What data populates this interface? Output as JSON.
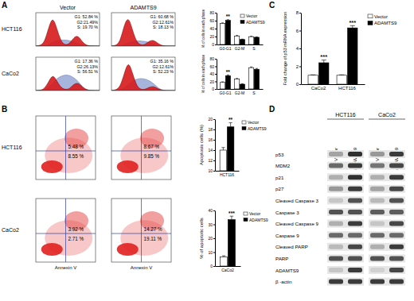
{
  "panel_letters": [
    "A",
    "B",
    "C",
    "D"
  ],
  "panel_a": {
    "columns": [
      "Vector",
      "ADAMTS9"
    ],
    "x": [
      0,
      1,
      2,
      3,
      4,
      5,
      6,
      7,
      8,
      9,
      10,
      11,
      12,
      13,
      14,
      15
    ],
    "xlim": [
      0,
      15
    ],
    "ylim": [
      0,
      110
    ],
    "tick_labels": false,
    "rows": [
      {
        "label": "HCT116",
        "histograms": [
          {
            "stats": [
              "G1: 52.84 %",
              "G2:21.49%",
              "S: 19.70 %"
            ],
            "g1_g2": [
              0,
              2,
              10,
              60,
              100,
              55,
              12,
              3,
              8,
              30,
              35,
              12,
              2,
              0,
              0,
              0
            ],
            "s_phase": [
              0,
              0,
              0,
              5,
              12,
              18,
              20,
              20,
              18,
              14,
              8,
              3,
              0,
              0,
              0,
              0
            ]
          },
          {
            "stats": [
              "G1: 60.68 %",
              "G2:12.61%",
              "S: 18.13 %"
            ],
            "g1_g2": [
              0,
              2,
              12,
              70,
              100,
              50,
              10,
              3,
              5,
              18,
              20,
              8,
              1,
              0,
              0,
              0
            ],
            "s_phase": [
              0,
              0,
              0,
              5,
              10,
              15,
              17,
              17,
              15,
              12,
              7,
              2,
              0,
              0,
              0,
              0
            ]
          }
        ]
      },
      {
        "label": "CaCo2",
        "histograms": [
          {
            "stats": [
              "G1: 17.36 %",
              "G2:26.13%",
              "S: 56.51 %"
            ],
            "g1_g2": [
              0,
              1,
              5,
              28,
              55,
              30,
              8,
              3,
              6,
              22,
              26,
              10,
              2,
              0,
              0,
              0
            ],
            "s_phase": [
              0,
              0,
              2,
              10,
              25,
              40,
              48,
              52,
              50,
              42,
              30,
              12,
              2,
              0,
              0,
              0
            ]
          },
          {
            "stats": [
              "G1: 35.16 %",
              "G2:12.61%",
              "S: 52.23 %"
            ],
            "g1_g2": [
              0,
              2,
              10,
              55,
              100,
              55,
              12,
              3,
              4,
              12,
              14,
              5,
              1,
              0,
              0,
              0
            ],
            "s_phase": [
              0,
              0,
              2,
              8,
              20,
              32,
              38,
              40,
              38,
              32,
              22,
              8,
              1,
              0,
              0,
              0
            ]
          }
        ]
      }
    ]
  },
  "panel_b": {
    "x_label": "Annexin V",
    "tick_labels": false,
    "rows": [
      {
        "label": "HCT116",
        "plots": [
          {
            "upper_right": "5.48 %",
            "lower_right": "8.55 %"
          },
          {
            "upper_right": "8.67 %",
            "lower_right": "9.85 %"
          }
        ]
      },
      {
        "label": "CaCo2",
        "plots": [
          {
            "upper_right": "3.92 %",
            "lower_right": "2.71 %"
          },
          {
            "upper_right": "14.27 %",
            "lower_right": "19.11 %"
          }
        ]
      }
    ]
  },
  "panel_d": {
    "cell_lines": [
      "HCT116",
      "CaCo2"
    ],
    "lanes": [
      "Vector",
      "ADAMTS9"
    ],
    "intensity_range": [
      0,
      1
    ],
    "rows": [
      {
        "label": "p53",
        "intensity": [
          0.35,
          0.85,
          0.4,
          0.8
        ]
      },
      {
        "label": "MDM2",
        "intensity": [
          0.6,
          0.8,
          0.55,
          0.75
        ]
      },
      {
        "label": "p21",
        "intensity": [
          0.3,
          0.85,
          0.3,
          0.8
        ]
      },
      {
        "label": "p27",
        "intensity": [
          0.4,
          0.8,
          0.35,
          0.75
        ]
      },
      {
        "label": "Cleaved Caspase 3",
        "intensity": [
          0.2,
          0.7,
          0.25,
          0.7
        ]
      },
      {
        "label": "Caspase 3",
        "intensity": [
          0.7,
          0.7,
          0.65,
          0.65
        ]
      },
      {
        "label": "Cleaved Caspase 9",
        "intensity": [
          0.3,
          0.8,
          0.2,
          0.75
        ]
      },
      {
        "label": "Caspase 9",
        "intensity": [
          0.6,
          0.6,
          0.6,
          0.6
        ]
      },
      {
        "label": "Cleaved PARP",
        "intensity": [
          0.25,
          0.75,
          0.3,
          0.8
        ]
      },
      {
        "label": "PARP",
        "intensity": [
          0.7,
          0.7,
          0.7,
          0.7
        ]
      },
      {
        "label": "ADAMTS9",
        "intensity": [
          0.2,
          0.8,
          0.15,
          0.75
        ]
      },
      {
        "label": "β -actin",
        "intensity": [
          0.8,
          0.8,
          0.8,
          0.8
        ]
      }
    ]
  },
  "chart_data": [
    {
      "type": "bar",
      "y_label": "% of cells in each phase",
      "categories": [
        "G0-G1",
        "G2-M",
        "S"
      ],
      "series": [
        {
          "name": "Vector",
          "color": "#ffffff",
          "values": [
            52.8,
            21.5,
            19.7
          ],
          "errors": [
            1.6,
            1.2,
            1.0
          ]
        },
        {
          "name": "ADAMTS9",
          "color": "#000000",
          "values": [
            60.7,
            12.6,
            18.1
          ],
          "errors": [
            1.8,
            0.9,
            1.1
          ]
        }
      ],
      "ylim": [
        0,
        80
      ],
      "yticks": [
        0,
        20,
        40,
        60,
        80
      ],
      "legend": "upper right",
      "annotations": [
        {
          "text": "**",
          "category": "G0-G1"
        }
      ]
    },
    {
      "type": "bar",
      "y_label": "% of cells in each phase",
      "categories": [
        "G0-G1",
        "G2-M",
        "S"
      ],
      "series": [
        {
          "color": "#ffffff",
          "values": [
            17.4,
            26.1,
            56.5
          ],
          "errors": [
            1.5,
            1.8,
            2.0
          ]
        },
        {
          "color": "#000000",
          "values": [
            35.2,
            12.6,
            52.2
          ],
          "errors": [
            2.2,
            1.2,
            2.1
          ]
        }
      ],
      "ylim": [
        0,
        80
      ],
      "yticks": [
        0,
        20,
        40,
        60,
        80
      ],
      "annotations": [
        {
          "text": "**",
          "category": "G0-G1"
        }
      ]
    },
    {
      "type": "bar",
      "y_label": "Apoptosis cells (%)",
      "categories": [
        "HCT116"
      ],
      "series": [
        {
          "name": "Vector",
          "color": "#ffffff",
          "values": [
            14.0
          ],
          "errors": [
            0.5
          ]
        },
        {
          "name": "ADAMTS9",
          "color": "#000000",
          "values": [
            18.5
          ],
          "errors": [
            0.8
          ]
        }
      ],
      "ylim": [
        10,
        20
      ],
      "yticks": [
        10,
        12,
        14,
        16,
        18,
        20
      ],
      "legend": "right",
      "annotations": [
        {
          "text": "**",
          "category": "HCT116"
        }
      ]
    },
    {
      "type": "bar",
      "y_label": "% of apoptotic cells",
      "categories": [
        "CaCo2"
      ],
      "series": [
        {
          "name": "Vector",
          "color": "#ffffff",
          "values": [
            6.6
          ],
          "errors": [
            0.8
          ]
        },
        {
          "name": "ADAMTS9",
          "color": "#000000",
          "values": [
            33.4
          ],
          "errors": [
            2.5
          ]
        }
      ],
      "ylim": [
        0,
        40
      ],
      "yticks": [
        0,
        10,
        20,
        30,
        40
      ],
      "legend": "right",
      "annotations": [
        {
          "text": "***",
          "category": "CaCo2"
        }
      ]
    },
    {
      "type": "bar",
      "y_label": "Fold change of p53 mRNA expression",
      "categories": [
        "CaCo2",
        "HCT116"
      ],
      "series": [
        {
          "name": "Vector",
          "color": "#ffffff",
          "values": [
            1.0,
            1.0
          ],
          "errors": [
            0.05,
            0.05
          ]
        },
        {
          "name": "ADAMTS9",
          "color": "#000000",
          "values": [
            2.4,
            6.3
          ],
          "errors": [
            0.3,
            0.25
          ]
        }
      ],
      "ylim": [
        0,
        8
      ],
      "yticks": [
        0,
        2,
        4,
        6,
        8
      ],
      "legend": "right",
      "annotations": [
        {
          "text": "***",
          "category": "CaCo2"
        },
        {
          "text": "***",
          "category": "HCT116"
        }
      ]
    }
  ]
}
